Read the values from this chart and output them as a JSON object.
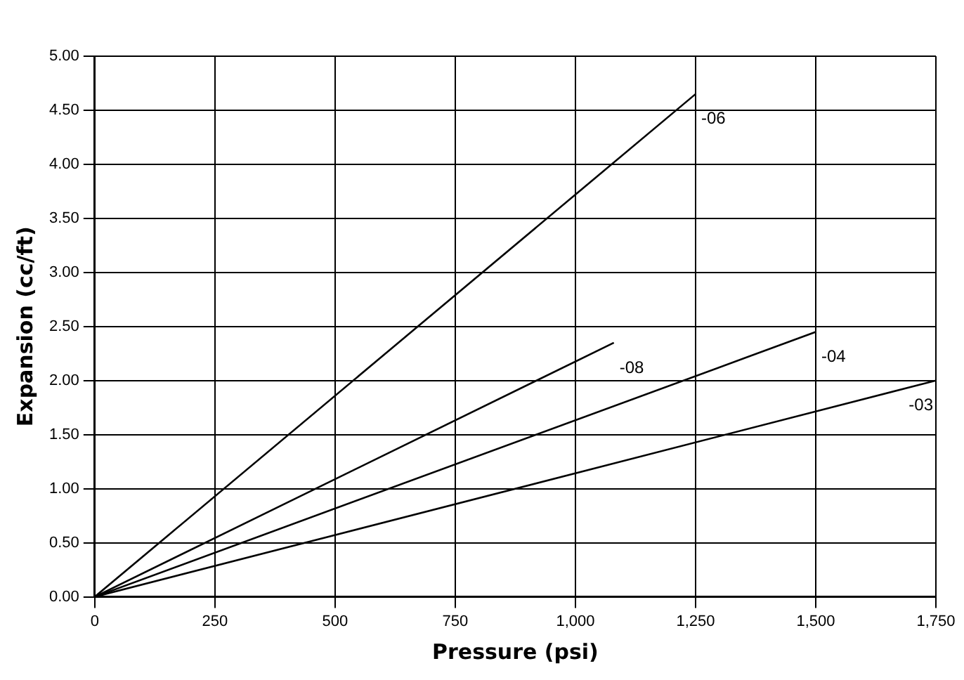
{
  "chart_data": {
    "type": "line",
    "xlabel": "Pressure (psi)",
    "ylabel": "Expansion (cc/ft)",
    "xlim": [
      0,
      1750
    ],
    "xticks": [
      0,
      250,
      500,
      750,
      {
        "value": 1000,
        "label": "1,000"
      },
      {
        "value": 1250,
        "label": "1,250"
      },
      {
        "value": 1500,
        "label": "1,500"
      },
      {
        "value": 1750,
        "label": "1,750"
      }
    ],
    "ylim": [
      0,
      5
    ],
    "yticks": [
      {
        "value": 0,
        "label": "0.00"
      },
      {
        "value": 0.5,
        "label": "0.50"
      },
      {
        "value": 1,
        "label": "1.00"
      },
      {
        "value": 1.5,
        "label": "1.50"
      },
      {
        "value": 2,
        "label": "2.00"
      },
      {
        "value": 2.5,
        "label": "2.50"
      },
      {
        "value": 3,
        "label": "3.00"
      },
      {
        "value": 3.5,
        "label": "3.50"
      },
      {
        "value": 4,
        "label": "4.00"
      },
      {
        "value": 4.5,
        "label": "4.50"
      },
      {
        "value": 5,
        "label": "5.00"
      }
    ],
    "grid": true,
    "legend": false,
    "marker": "none",
    "line_style": "solid",
    "series": [
      {
        "name": "-06",
        "color": "#000000",
        "x": [
          0,
          1250
        ],
        "values": [
          0,
          4.65
        ]
      },
      {
        "name": "-08",
        "color": "#000000",
        "x": [
          0,
          1080
        ],
        "values": [
          0,
          2.35
        ]
      },
      {
        "name": "-04",
        "color": "#000000",
        "x": [
          0,
          1500
        ],
        "values": [
          0,
          2.45
        ]
      },
      {
        "name": "-03",
        "color": "#000000",
        "x": [
          0,
          1750
        ],
        "values": [
          0,
          2
        ]
      }
    ]
  }
}
